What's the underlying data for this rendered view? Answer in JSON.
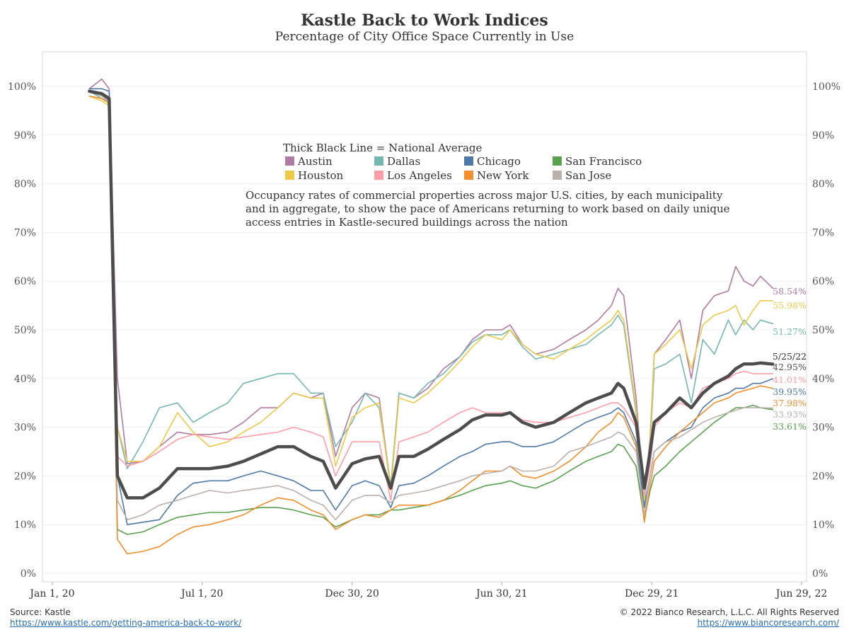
{
  "footer": {
    "source": "Source: Kastle",
    "source_url": "https://www.kastle.com/getting-america-back-to-work/",
    "copyright": "© 2022 Bianco Research, L.L.C. All Rights Reserved",
    "site_url": "https://www.biancoresearch.com/"
  },
  "chart_data": {
    "type": "line",
    "title": "Kastle Back to Work Indices",
    "subtitle": "Percentage of City Office Space Currently in Use",
    "legend_title": "Thick Black Line = National Average",
    "legend_placement": "top-center",
    "annotation": [
      "Occupancy rates of commercial properties across major U.S. cities, by each municipality",
      "and in aggregate, to show the pace of Americans returning to work based on daily unique",
      "access entries in Kastle-secured buildings across the nation"
    ],
    "end_date_label": "5/25/22",
    "x_ticks": [
      {
        "date": "2020-01-01",
        "label": "Jan 1, 20"
      },
      {
        "date": "2020-07-01",
        "label": "Jul 1, 20"
      },
      {
        "date": "2020-12-30",
        "label": "Dec 30, 20"
      },
      {
        "date": "2021-06-30",
        "label": "Jun 30, 21"
      },
      {
        "date": "2021-12-29",
        "label": "Dec 29, 21"
      },
      {
        "date": "2022-06-29",
        "label": "Jun 29, 22"
      }
    ],
    "xlim": [
      "2019-12-20",
      "2022-07-05"
    ],
    "ylim": [
      0,
      105
    ],
    "y_ticks": [
      0,
      10,
      20,
      30,
      40,
      50,
      60,
      70,
      80,
      90,
      100
    ],
    "y_tick_labels": [
      "0%",
      "10%",
      "20%",
      "30%",
      "40%",
      "50%",
      "60%",
      "70%",
      "80%",
      "90%",
      "100%"
    ],
    "grid": "horizontal",
    "x_dates": [
      "2020-02-15",
      "2020-03-01",
      "2020-03-10",
      "2020-03-20",
      "2020-04-01",
      "2020-04-20",
      "2020-05-10",
      "2020-06-01",
      "2020-06-20",
      "2020-07-10",
      "2020-08-01",
      "2020-08-20",
      "2020-09-10",
      "2020-10-01",
      "2020-10-20",
      "2020-11-10",
      "2020-11-25",
      "2020-12-10",
      "2020-12-30",
      "2021-01-15",
      "2021-02-01",
      "2021-02-15",
      "2021-02-25",
      "2021-03-15",
      "2021-04-01",
      "2021-04-20",
      "2021-05-10",
      "2021-05-25",
      "2021-06-10",
      "2021-06-30",
      "2021-07-10",
      "2021-07-25",
      "2021-08-10",
      "2021-09-01",
      "2021-09-20",
      "2021-10-10",
      "2021-10-25",
      "2021-11-10",
      "2021-11-18",
      "2021-11-25",
      "2021-12-10",
      "2021-12-20",
      "2021-12-27",
      "2022-01-01",
      "2022-01-15",
      "2022-02-01",
      "2022-02-15",
      "2022-03-01",
      "2022-03-15",
      "2022-04-01",
      "2022-04-10",
      "2022-04-20",
      "2022-05-01",
      "2022-05-10",
      "2022-05-25"
    ],
    "series": [
      {
        "name": "Austin",
        "color": "#b07aa1",
        "end_label": "58.54%",
        "values": [
          99.5,
          101.5,
          99.5,
          40,
          22.5,
          23,
          26,
          29,
          28.5,
          28.5,
          29,
          31,
          34,
          34,
          37,
          36,
          37,
          24,
          34,
          37,
          36,
          17.5,
          37,
          36,
          38,
          42,
          44.5,
          48,
          50,
          50,
          51,
          47,
          45,
          46,
          48,
          50,
          52,
          55,
          58.5,
          57,
          36,
          15,
          28,
          45,
          48,
          52,
          40,
          54,
          57,
          58,
          63,
          60,
          59,
          61,
          58.54
        ]
      },
      {
        "name": "Dallas",
        "color": "#76b7b2",
        "end_label": "51.27%",
        "values": [
          99,
          97.5,
          97,
          30,
          21.5,
          27,
          34,
          35,
          31,
          33,
          35,
          39,
          40,
          41,
          41,
          37,
          37,
          26,
          31,
          37,
          34,
          18,
          37,
          36,
          39,
          41,
          44.5,
          47.5,
          49,
          49,
          50,
          46.5,
          44,
          45,
          46,
          47,
          49,
          51,
          53,
          51,
          33,
          14,
          26,
          42,
          43,
          45,
          35,
          48,
          45,
          52,
          49,
          52,
          50,
          52,
          51.27
        ]
      },
      {
        "name": "Chicago",
        "color": "#4e79a7",
        "end_label": "39.95%",
        "values": [
          99.5,
          99.5,
          99,
          20,
          10,
          10.5,
          11,
          16,
          18.5,
          19,
          19,
          20,
          21,
          20,
          19,
          17,
          17,
          13,
          18,
          19,
          18,
          13.5,
          18,
          18.5,
          20,
          22,
          24,
          25,
          26.5,
          27,
          27,
          26,
          26,
          27,
          29,
          31,
          32,
          33,
          34,
          33,
          27,
          13.5,
          20,
          25,
          27,
          29,
          30,
          34,
          36,
          37,
          38,
          38,
          39,
          39,
          39.95
        ]
      },
      {
        "name": "San Francisco",
        "color": "#59a14f",
        "end_label": "33.61%",
        "values": [
          99,
          98,
          97,
          9,
          8,
          8.5,
          10,
          11.5,
          12,
          12.5,
          12.5,
          13,
          13.5,
          13.5,
          13,
          12,
          11.5,
          9.5,
          11,
          12,
          12,
          13,
          13,
          13.5,
          14,
          15,
          16,
          17,
          18,
          18.5,
          19,
          18,
          17.5,
          19,
          21,
          23,
          24,
          25,
          26.5,
          26,
          22,
          11,
          17,
          20,
          22,
          25,
          27,
          29,
          31,
          33,
          34,
          34,
          34.5,
          34,
          33.61
        ]
      },
      {
        "name": "Houston",
        "color": "#edc948",
        "end_label": "55.98%",
        "values": [
          98,
          97,
          96,
          30,
          23,
          23,
          26,
          33,
          29,
          26,
          27,
          29,
          31,
          34,
          37,
          36,
          36,
          22,
          32,
          34,
          35,
          17,
          36,
          35,
          37,
          40,
          43.5,
          46.5,
          49,
          48,
          50,
          47,
          45,
          44,
          46,
          48,
          50,
          52,
          54,
          52,
          34,
          15,
          27,
          45,
          47,
          50,
          42,
          51,
          53,
          54,
          55,
          51,
          54,
          56,
          55.98
        ]
      },
      {
        "name": "Los Angeles",
        "color": "#ff9da7",
        "end_label": "41.01%",
        "values": [
          99,
          98,
          97,
          24,
          22,
          23,
          25,
          27.5,
          28.5,
          28,
          27.5,
          28,
          28.5,
          29,
          30,
          29,
          28,
          20,
          27,
          27,
          27,
          15,
          27,
          28,
          29,
          31,
          33,
          34,
          33,
          33,
          33,
          31.5,
          31,
          31,
          32,
          33,
          34,
          35,
          35,
          34,
          30,
          16,
          22,
          30,
          33,
          35,
          34,
          38,
          39,
          40,
          41,
          41.5,
          41,
          41,
          41.01
        ]
      },
      {
        "name": "New York",
        "color": "#f28e2b",
        "end_label": "37.98%",
        "values": [
          98,
          97.5,
          96.5,
          7,
          4,
          4.5,
          5.5,
          8,
          9.5,
          10,
          11,
          12,
          14,
          15.5,
          15,
          13,
          12,
          9,
          11,
          12,
          11.5,
          13,
          14,
          14,
          14,
          15,
          17,
          19,
          21,
          21,
          22,
          20,
          19.5,
          21,
          23,
          26,
          29,
          31,
          33,
          32,
          26,
          10.5,
          18,
          23,
          26,
          29,
          31,
          33,
          35,
          36,
          37,
          37.5,
          38,
          38.5,
          37.98
        ]
      },
      {
        "name": "San Jose",
        "color": "#bab0ac",
        "end_label": "33.93%",
        "values": [
          99,
          98,
          97,
          15,
          11,
          12,
          14,
          15,
          16,
          17,
          16.5,
          17,
          17.5,
          18,
          17,
          15,
          14,
          11,
          15,
          16,
          16,
          14.5,
          16,
          16.5,
          17,
          18,
          19,
          20,
          20.5,
          21,
          22,
          21,
          21,
          22,
          25,
          26,
          27,
          28,
          29,
          28.5,
          25,
          12,
          20,
          25,
          27,
          28,
          29.5,
          31,
          32,
          33,
          33.5,
          34,
          34,
          34,
          33.93
        ]
      },
      {
        "name": "National Average",
        "color": "#4d4d4d",
        "end_label": "42.95%",
        "values": [
          99,
          98.5,
          97.5,
          20,
          15.5,
          15.5,
          17.5,
          21.5,
          21.5,
          21.5,
          22,
          23,
          24.5,
          26,
          26,
          24,
          23,
          17.5,
          22.5,
          23.5,
          24,
          17.5,
          24,
          24,
          25.5,
          27.5,
          29.5,
          31.5,
          32.5,
          32.5,
          33,
          31,
          30,
          31,
          33,
          35,
          36,
          37,
          39,
          38,
          31,
          17.5,
          25,
          31,
          33,
          36,
          34,
          37,
          39,
          40.5,
          42,
          43,
          43,
          43.2,
          42.95
        ]
      }
    ]
  }
}
